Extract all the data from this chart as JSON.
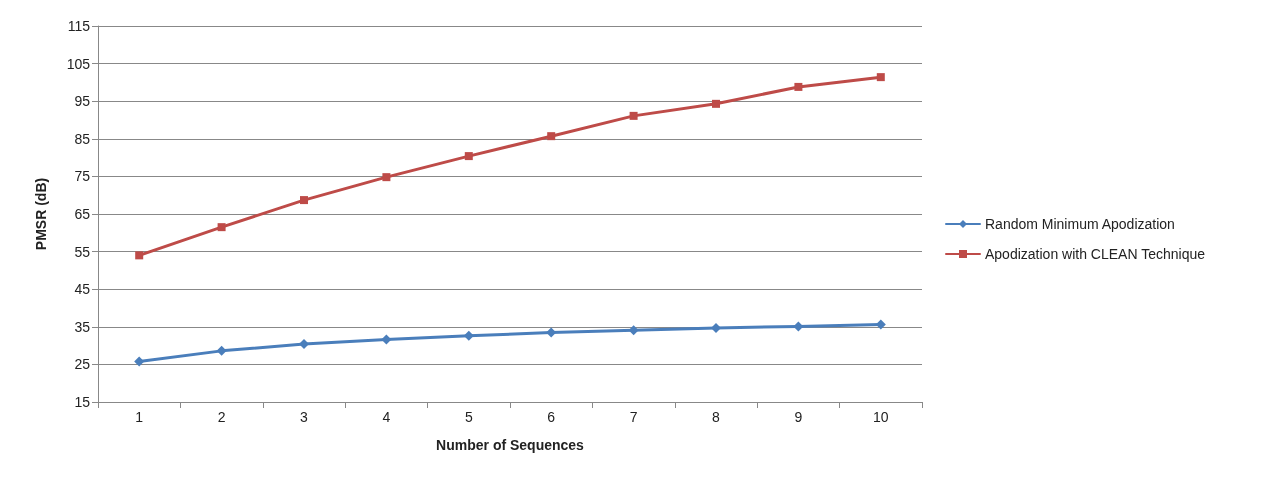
{
  "chart_data": {
    "type": "line",
    "xlabel": "Number of Sequences",
    "ylabel": "PMSR (dB)",
    "categories": [
      "1",
      "2",
      "3",
      "4",
      "5",
      "6",
      "7",
      "8",
      "9",
      "10"
    ],
    "series": [
      {
        "name": "Random Minimum Apodization",
        "color": "#4a7ebb",
        "marker": "diamond",
        "values": [
          25.8,
          28.6,
          30.4,
          31.6,
          32.6,
          33.5,
          34.1,
          34.7,
          35.1,
          35.6
        ]
      },
      {
        "name": "Apodization with CLEAN Technique",
        "color": "#be4b48",
        "marker": "square",
        "values": [
          54,
          61.5,
          68.7,
          74.8,
          80.4,
          85.7,
          91.1,
          94.3,
          98.8,
          101.4
        ]
      }
    ],
    "ylim": [
      15,
      115
    ],
    "yticks": [
      15,
      25,
      35,
      45,
      55,
      65,
      75,
      85,
      95,
      105,
      115
    ],
    "grid": "y",
    "legend": "right",
    "line_style": "solid"
  }
}
